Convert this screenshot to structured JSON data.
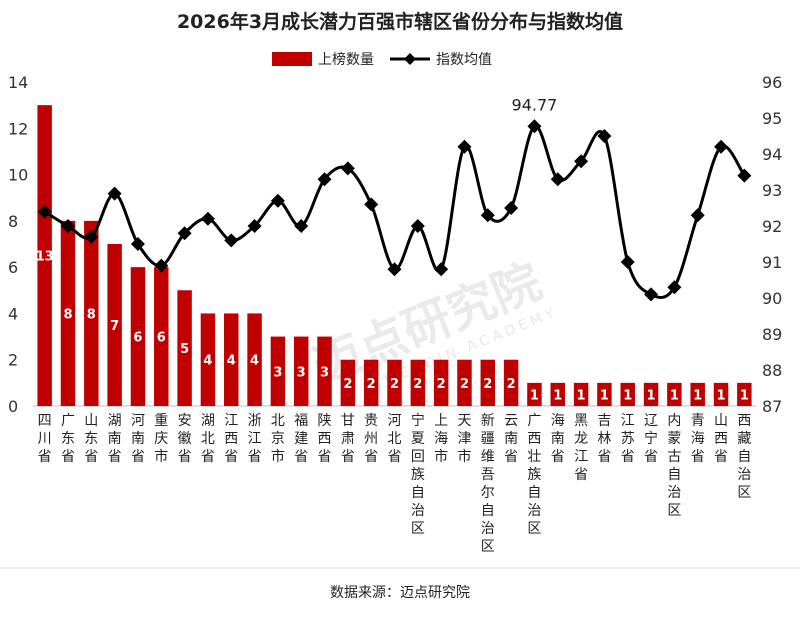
{
  "chart_data": {
    "type": "bar+line",
    "title": "2026年3月成长潜力百强市辖区省份分布与指数均值",
    "legend": {
      "bar": "上榜数量",
      "line": "指数均值",
      "placement": "top-center"
    },
    "source": "数据来源：迈点研究院",
    "watermark": {
      "main": "迈点研究院",
      "sub": "MEADIN ACADEMY"
    },
    "categories": [
      "四川省",
      "广东省",
      "山东省",
      "湖南省",
      "河南省",
      "重庆市",
      "安徽省",
      "湖北省",
      "江西省",
      "浙江省",
      "北京市",
      "福建省",
      "陕西省",
      "甘肃省",
      "贵州省",
      "河北省",
      "宁夏回族自治区",
      "上海市",
      "天津市",
      "新疆维吾尔自治区",
      "云南省",
      "广西壮族自治区",
      "海南省",
      "黑龙江省",
      "吉林省",
      "江苏省",
      "辽宁省",
      "内蒙古自治区",
      "青海省",
      "山西省",
      "西藏自治区"
    ],
    "series": [
      {
        "name": "上榜数量",
        "axis": "left",
        "values": [
          13,
          8,
          8,
          7,
          6,
          6,
          5,
          4,
          4,
          4,
          3,
          3,
          3,
          2,
          2,
          2,
          2,
          2,
          2,
          2,
          2,
          1,
          1,
          1,
          1,
          1,
          1,
          1,
          1,
          1,
          1
        ]
      },
      {
        "name": "指数均值",
        "axis": "right",
        "values": [
          92.4,
          92.0,
          91.7,
          92.9,
          91.5,
          90.9,
          91.8,
          92.2,
          91.6,
          92.0,
          92.7,
          92.0,
          93.3,
          93.6,
          92.6,
          90.8,
          92.0,
          90.8,
          94.2,
          92.3,
          92.5,
          94.77,
          93.3,
          93.8,
          94.5,
          91.0,
          90.1,
          90.3,
          92.3,
          94.2,
          93.4
        ]
      }
    ],
    "annotation": {
      "label": "94.77",
      "category": "广西壮族自治区"
    },
    "y_left": {
      "min": 0,
      "max": 14,
      "ticks": [
        "0",
        "2",
        "4",
        "6",
        "8",
        "10",
        "12",
        "14"
      ]
    },
    "y_right": {
      "min": 87,
      "max": 96,
      "ticks": [
        "87",
        "88",
        "89",
        "90",
        "91",
        "92",
        "93",
        "94",
        "95",
        "96"
      ]
    },
    "colors": {
      "bar": "#c00000",
      "line": "#000000",
      "marker": "#000000"
    }
  }
}
